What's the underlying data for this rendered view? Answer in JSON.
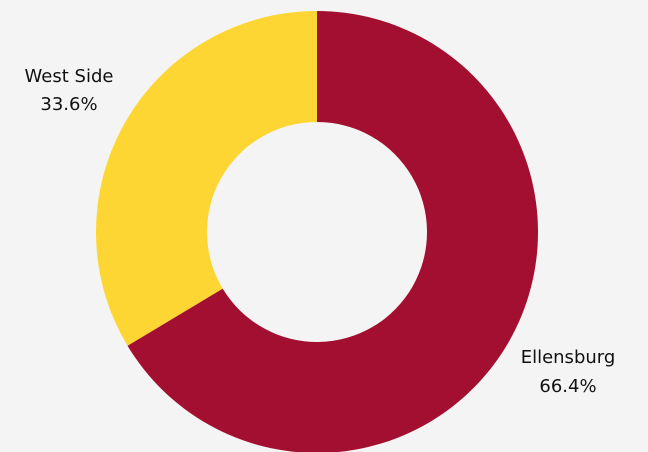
{
  "chart_data": {
    "type": "pie",
    "style": "donut",
    "slices": [
      {
        "name": "Ellensburg",
        "value": 66.4,
        "label": "66.4%",
        "color": "#a30f31"
      },
      {
        "name": "West Side",
        "value": 33.6,
        "label": "33.6%",
        "color": "#fdd633"
      }
    ]
  }
}
